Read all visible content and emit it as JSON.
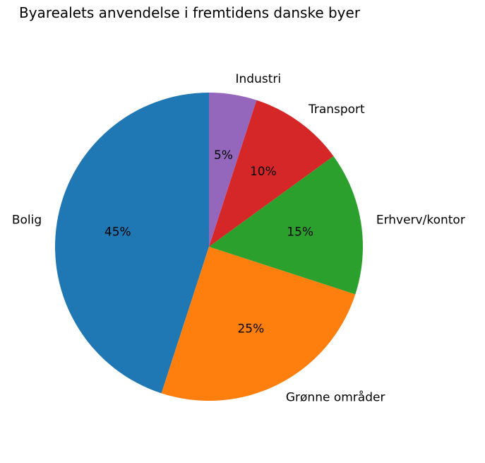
{
  "chart_data": {
    "type": "pie",
    "title": "Byarealets anvendelse i fremtidens danske byer",
    "start_angle_deg": 90,
    "direction": "counterclockwise",
    "slices": [
      {
        "label": "Bolig",
        "value": 45,
        "pct_label": "45%",
        "color": "#1f77b4"
      },
      {
        "label": "Grønne områder",
        "value": 25,
        "pct_label": "25%",
        "color": "#ff7f0e"
      },
      {
        "label": "Erhverv/kontor",
        "value": 15,
        "pct_label": "15%",
        "color": "#2ca02c"
      },
      {
        "label": "Transport",
        "value": 10,
        "pct_label": "10%",
        "color": "#d62728"
      },
      {
        "label": "Industri",
        "value": 5,
        "pct_label": "5%",
        "color": "#9467bd"
      }
    ]
  }
}
